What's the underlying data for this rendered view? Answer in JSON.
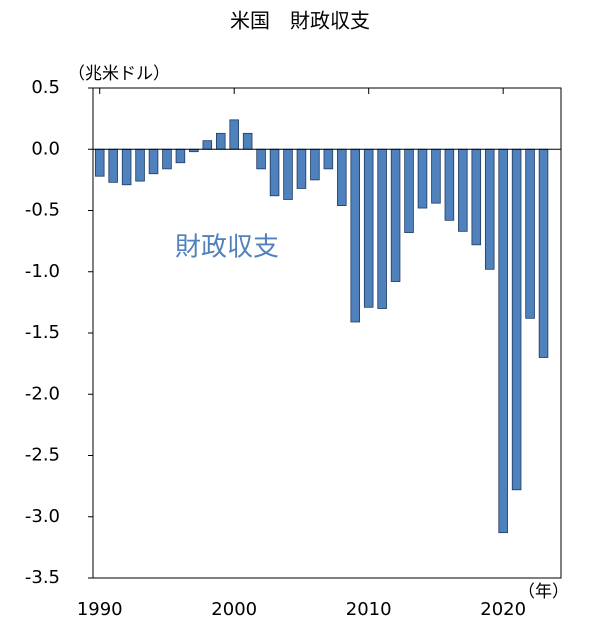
{
  "chart_data": {
    "type": "bar",
    "title": "米国　財政収支",
    "y_unit": "（兆米ドル）",
    "x_unit": "（年）",
    "annotation": "財政収支",
    "x": [
      1990,
      1991,
      1992,
      1993,
      1994,
      1995,
      1996,
      1997,
      1998,
      1999,
      2000,
      2001,
      2002,
      2003,
      2004,
      2005,
      2006,
      2007,
      2008,
      2009,
      2010,
      2011,
      2012,
      2013,
      2014,
      2015,
      2016,
      2017,
      2018,
      2019,
      2020,
      2021,
      2022,
      2023
    ],
    "values": [
      -0.22,
      -0.27,
      -0.29,
      -0.26,
      -0.2,
      -0.16,
      -0.11,
      -0.02,
      0.07,
      0.13,
      0.24,
      0.13,
      -0.16,
      -0.38,
      -0.41,
      -0.32,
      -0.25,
      -0.16,
      -0.46,
      -1.41,
      -1.29,
      -1.3,
      -1.08,
      -0.68,
      -0.48,
      -0.44,
      -0.58,
      -0.67,
      -0.78,
      -0.98,
      -3.13,
      -2.78,
      -1.38,
      -1.7
    ],
    "color": "#4f81bd",
    "xlim": [
      1989.5,
      2024.3
    ],
    "xticks": [
      1990,
      2000,
      2010,
      2020
    ],
    "ylim": [
      -3.5,
      0.5
    ],
    "yticks": [
      {
        "value": 0.5,
        "label": "0.5"
      },
      {
        "value": 0,
        "label": "0.0"
      },
      {
        "value": -0.5,
        "label": "-0.5"
      },
      {
        "value": -1,
        "label": "-1.0"
      },
      {
        "value": -1.5,
        "label": "-1.5"
      },
      {
        "value": -2,
        "label": "-2.0"
      },
      {
        "value": -2.5,
        "label": "-2.5"
      },
      {
        "value": -3,
        "label": "-3.0"
      },
      {
        "value": -3.5,
        "label": "-3.5"
      }
    ]
  }
}
